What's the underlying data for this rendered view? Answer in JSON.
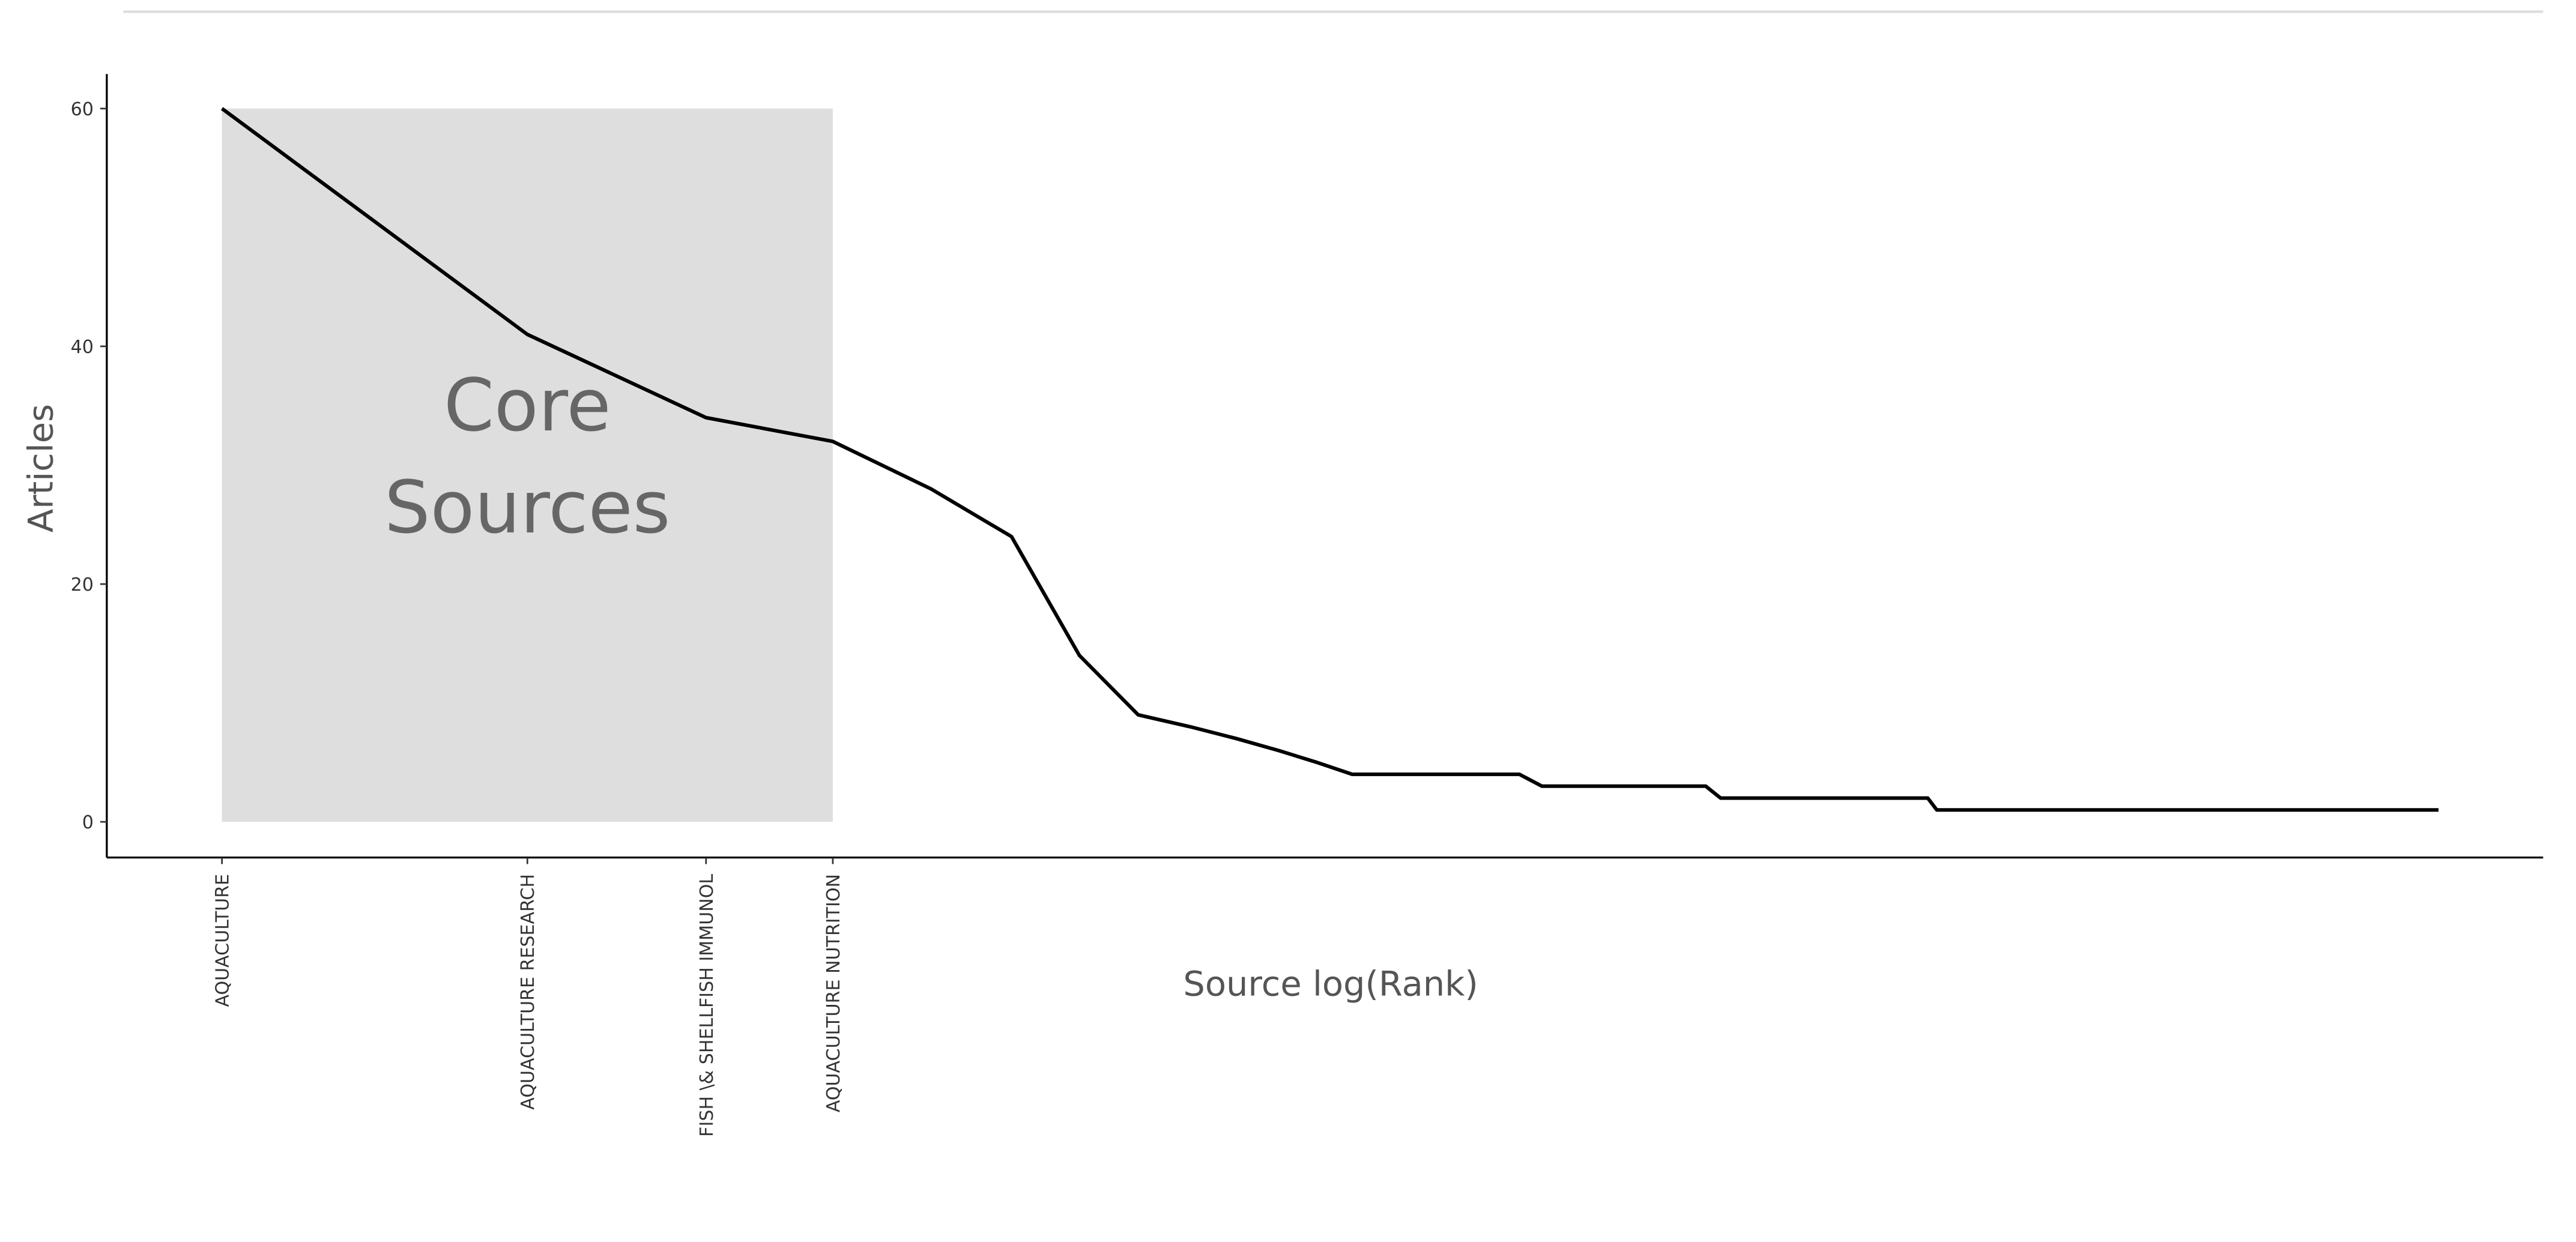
{
  "chart_data": {
    "type": "line",
    "x_label": "Source log(Rank)",
    "y_label": "Articles",
    "x": [
      1,
      2,
      3,
      4,
      5,
      6,
      7,
      8,
      9,
      10,
      11,
      12,
      13,
      19,
      20,
      29,
      30,
      48,
      49,
      153
    ],
    "values": [
      60,
      41,
      34,
      32,
      28,
      24,
      14,
      9,
      8,
      7,
      6,
      5,
      4,
      4,
      3,
      3,
      2,
      2,
      1,
      1
    ],
    "color": "#000000",
    "xscale": "log",
    "xlim": [
      0.77,
      194
    ],
    "xticks": [
      {
        "value": 1,
        "label": "AQUACULTURE"
      },
      {
        "value": 2,
        "label": "AQUACULTURE RESEARCH"
      },
      {
        "value": 3,
        "label": "FISH \\& SHELLFISH IMMUNOL"
      },
      {
        "value": 4,
        "label": "AQUACULTURE NUTRITION"
      }
    ],
    "ylim": [
      -3,
      62.9
    ],
    "yticks": [
      0,
      20,
      40,
      60
    ],
    "core_zone": {
      "label_lines": [
        "Core",
        "Sources"
      ],
      "color": "#dedede"
    }
  }
}
